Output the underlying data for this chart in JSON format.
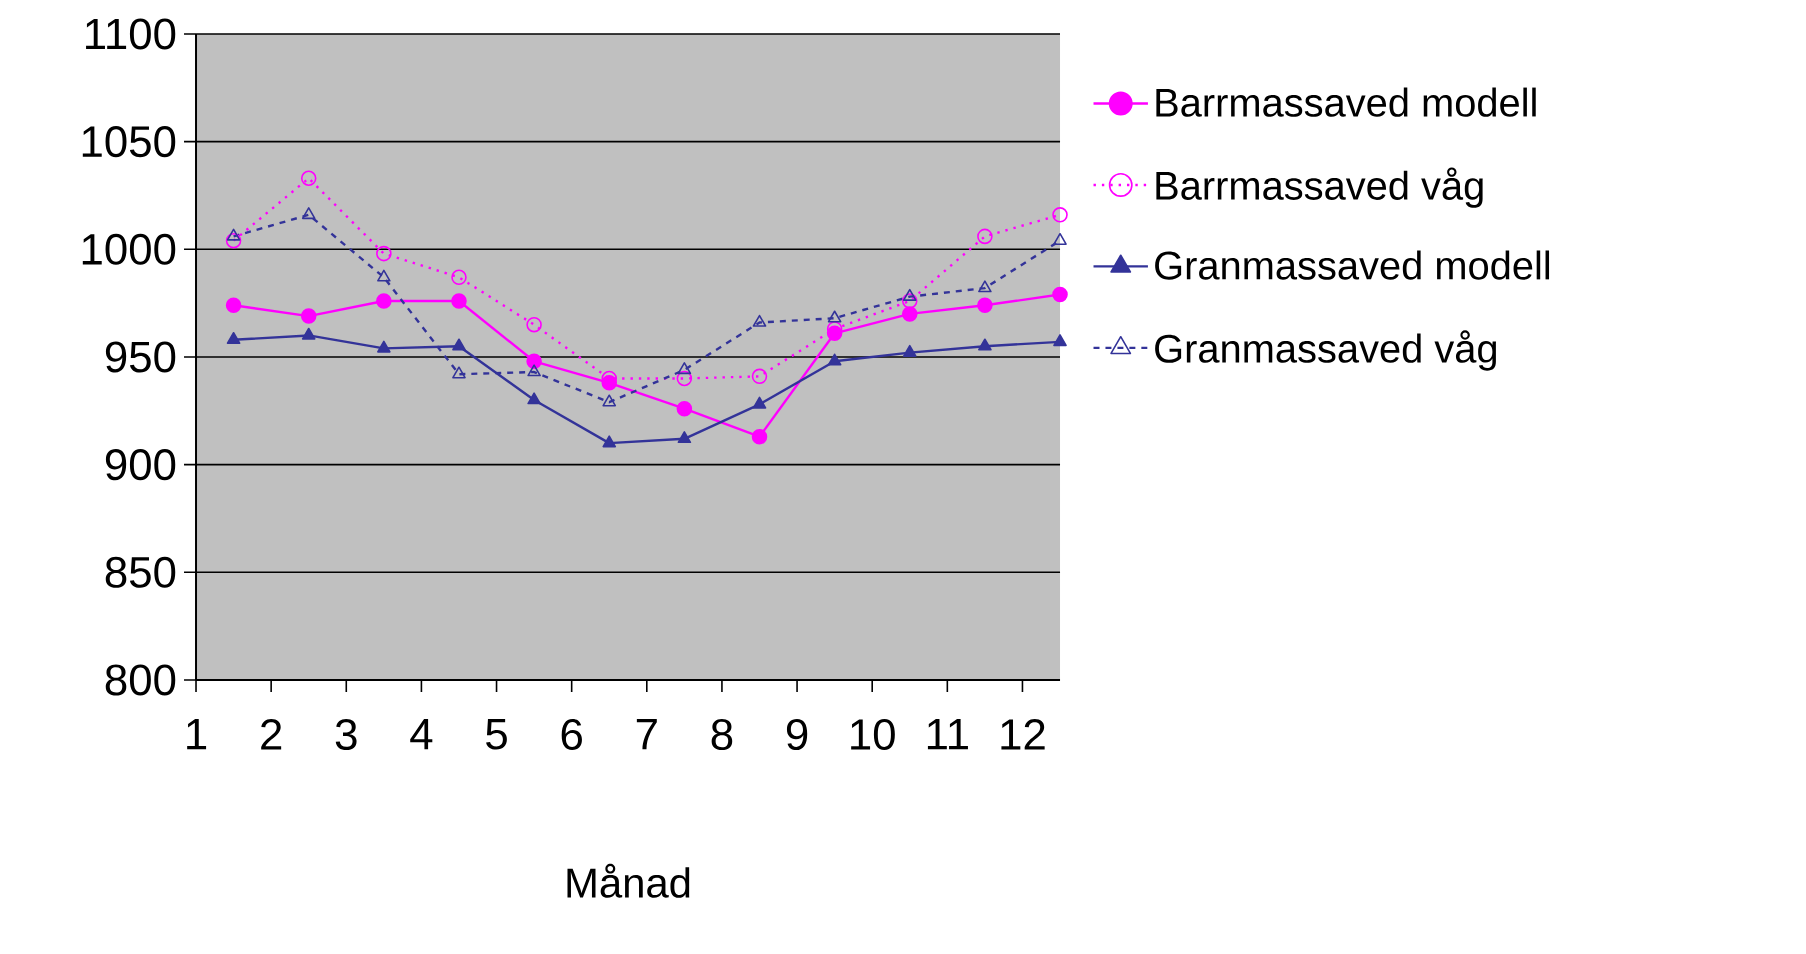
{
  "chart_data": {
    "type": "line",
    "xlabel": "Månad",
    "xlim": [
      1,
      12.5
    ],
    "xticks": [
      1,
      2,
      3,
      4,
      5,
      6,
      7,
      8,
      9,
      10,
      11,
      12
    ],
    "ylim": [
      800,
      1100
    ],
    "yticks": [
      800,
      850,
      900,
      950,
      1000,
      1050,
      1100
    ],
    "grid": "y",
    "legend": "right",
    "x": [
      1.5,
      2.5,
      3.5,
      4.5,
      5.5,
      6.5,
      7.5,
      8.5,
      9.5,
      10.5,
      11.5,
      12.5
    ],
    "series": [
      {
        "name": "Barrmassaved modell",
        "color": "#ff00ff",
        "marker": "circle",
        "line_style": "solid",
        "values": [
          974,
          969,
          976,
          976,
          948,
          938,
          926,
          913,
          961,
          970,
          974,
          979
        ]
      },
      {
        "name": "Barrmassaved våg",
        "color": "#ff00ff",
        "marker": "circle",
        "line_style": "dotted",
        "values": [
          1004,
          1033,
          998,
          987,
          965,
          940,
          940,
          941,
          963,
          976,
          1006,
          1016
        ]
      },
      {
        "name": "Granmassaved modell",
        "color": "#333399",
        "marker": "triangle",
        "line_style": "solid",
        "values": [
          958,
          960,
          954,
          955,
          930,
          910,
          912,
          928,
          948,
          952,
          955,
          957
        ]
      },
      {
        "name": "Granmassaved våg",
        "color": "#333399",
        "marker": "triangle",
        "line_style": "dashed",
        "values": [
          1006,
          1016,
          987,
          942,
          943,
          929,
          944,
          966,
          968,
          978,
          982,
          1004
        ]
      }
    ]
  }
}
